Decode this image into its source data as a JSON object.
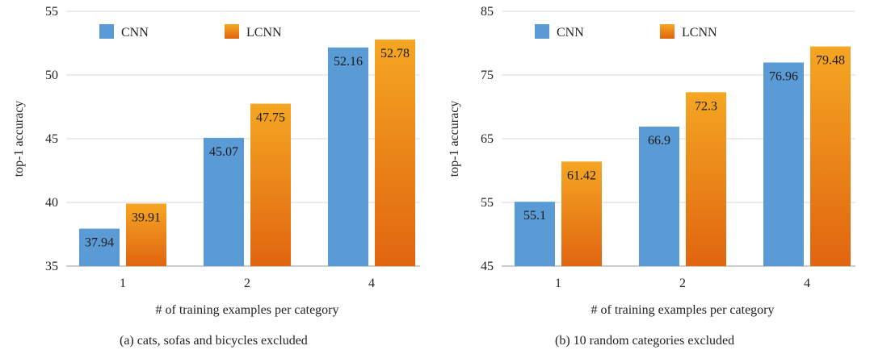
{
  "colors": {
    "cnn": "#5b9bd5",
    "lcnn_top": "#f5a623",
    "lcnn_bottom": "#e0650f"
  },
  "chart_data": [
    {
      "type": "bar",
      "categories": [
        "1",
        "2",
        "4"
      ],
      "series": [
        {
          "name": "CNN",
          "values": [
            37.94,
            45.07,
            52.16
          ]
        },
        {
          "name": "LCNN",
          "values": [
            39.91,
            47.75,
            52.78
          ]
        }
      ],
      "value_labels": [
        [
          "37.94",
          "45.07",
          "52.16"
        ],
        [
          "39.91",
          "47.75",
          "52.78"
        ]
      ],
      "xlabel": "# of training examples per category",
      "ylabel": "top-1 accuracy",
      "ylim": [
        35,
        55
      ],
      "yticks": [
        "35",
        "40",
        "45",
        "50",
        "55"
      ],
      "caption": "(a)  cats, sofas and bicycles excluded",
      "legend": "top-left",
      "grid": true
    },
    {
      "type": "bar",
      "categories": [
        "1",
        "2",
        "4"
      ],
      "series": [
        {
          "name": "CNN",
          "values": [
            55.1,
            66.9,
            76.96
          ]
        },
        {
          "name": "LCNN",
          "values": [
            61.42,
            72.3,
            79.48
          ]
        }
      ],
      "value_labels": [
        [
          "55.1",
          "66.9",
          "76.96"
        ],
        [
          "61.42",
          "72.3",
          "79.48"
        ]
      ],
      "xlabel": "# of training examples per category",
      "ylabel": "top-1 accuracy",
      "ylim": [
        45,
        85
      ],
      "yticks": [
        "45",
        "55",
        "65",
        "75",
        "85"
      ],
      "caption": "(b)  10 random categories excluded",
      "legend": "top-left",
      "grid": true
    }
  ]
}
